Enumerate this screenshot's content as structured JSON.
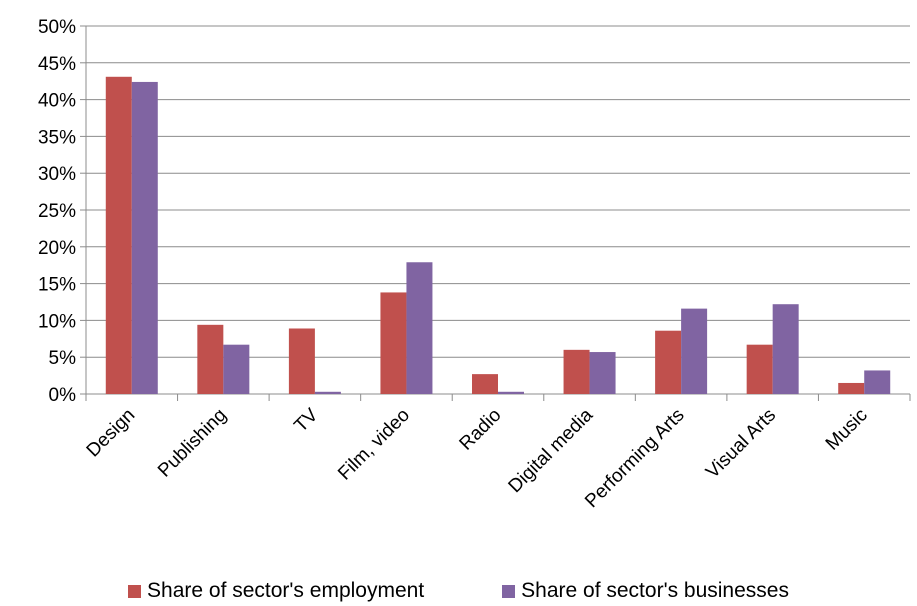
{
  "chart_data": {
    "type": "bar",
    "title": "",
    "xlabel": "",
    "ylabel": "",
    "ylim": [
      0,
      0.5
    ],
    "yticks": [
      "0%",
      "5%",
      "10%",
      "15%",
      "20%",
      "25%",
      "30%",
      "35%",
      "40%",
      "45%",
      "50%"
    ],
    "categories": [
      "Design",
      "Publishing",
      "TV",
      "Film, video",
      "Radio",
      "Digital media",
      "Performing Arts",
      "Visual Arts",
      "Music"
    ],
    "series": [
      {
        "name": "Share of sector's employment",
        "color": "#c0504d",
        "values": [
          0.431,
          0.094,
          0.089,
          0.138,
          0.027,
          0.06,
          0.086,
          0.067,
          0.015
        ]
      },
      {
        "name": "Share of sector's businesses",
        "color": "#8064a2",
        "values": [
          0.424,
          0.067,
          0.003,
          0.179,
          0.003,
          0.057,
          0.116,
          0.122,
          0.032
        ]
      }
    ],
    "grid": true,
    "legend_position": "bottom"
  }
}
